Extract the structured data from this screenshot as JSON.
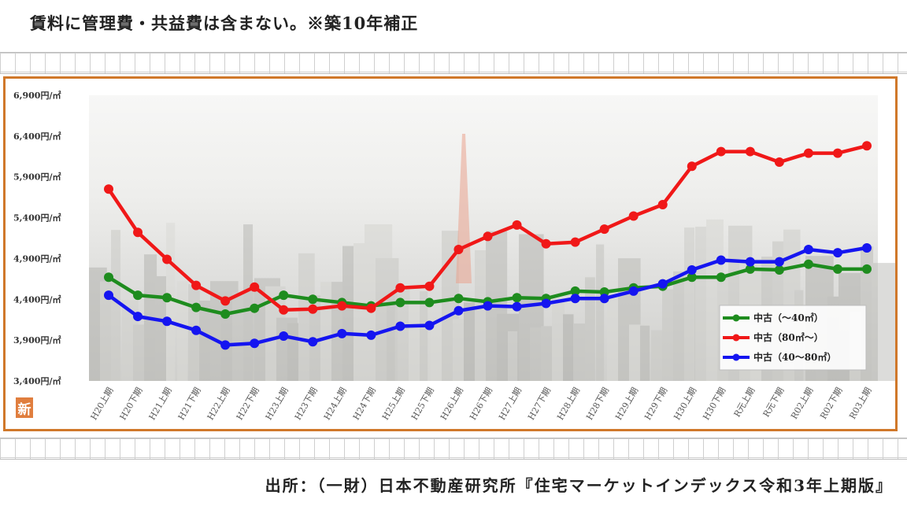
{
  "header": {
    "note": "賃料に管理費・共益費は含まない。※築10年補正"
  },
  "footer": {
    "source": "出所：（一財）日本不動産研究所『住宅マーケットインデックス令和3年上期版』"
  },
  "badge": {
    "label": "新"
  },
  "colors": {
    "frame": "#d0782a",
    "badge": "#e07e3e"
  },
  "chart_data": {
    "type": "line",
    "categories": [
      "H20上期",
      "H20下期",
      "H21上期",
      "H21下期",
      "H22上期",
      "H22下期",
      "H23上期",
      "H23下期",
      "H24上期",
      "H24下期",
      "H25上期",
      "H25下期",
      "H26上期",
      "H26下期",
      "H27上期",
      "H27下期",
      "H28上期",
      "H28下期",
      "H29上期",
      "H29下期",
      "H30上期",
      "H30下期",
      "R元上期",
      "R元下期",
      "R02上期",
      "R02下期",
      "R03上期"
    ],
    "y_ticks": [
      "6,900円/㎡",
      "6,400円/㎡",
      "5,900円/㎡",
      "5,400円/㎡",
      "4,900円/㎡",
      "4,400円/㎡",
      "3,900円/㎡",
      "3,400円/㎡"
    ],
    "y_tick_values": [
      6900,
      6400,
      5900,
      5400,
      4900,
      4400,
      3900,
      3400
    ],
    "ylim": [
      3400,
      6900
    ],
    "grid": false,
    "legend_position": "bottom-right",
    "series": [
      {
        "name": "中古（～40㎡）",
        "color": "#1e8c1e",
        "values": [
          4670,
          4450,
          4420,
          4300,
          4220,
          4290,
          4450,
          4400,
          4360,
          4320,
          4360,
          4360,
          4410,
          4370,
          4420,
          4410,
          4500,
          4490,
          4540,
          4560,
          4670,
          4670,
          4770,
          4760,
          4830,
          4770,
          4770
        ]
      },
      {
        "name": "中古（80㎡～）",
        "color": "#f01818",
        "values": [
          5750,
          5220,
          4890,
          4570,
          4380,
          4550,
          4270,
          4280,
          4320,
          4290,
          4540,
          4560,
          5010,
          5170,
          5310,
          5080,
          5100,
          5260,
          5420,
          5560,
          6030,
          6210,
          6210,
          6080,
          6190,
          6190,
          6280
        ]
      },
      {
        "name": "中古（40～80㎡）",
        "color": "#1515f0",
        "values": [
          4450,
          4190,
          4130,
          4020,
          3840,
          3860,
          3950,
          3880,
          3980,
          3960,
          4070,
          4080,
          4260,
          4320,
          4310,
          4350,
          4410,
          4410,
          4500,
          4590,
          4760,
          4880,
          4860,
          4860,
          5010,
          4970,
          5030
        ]
      }
    ]
  }
}
